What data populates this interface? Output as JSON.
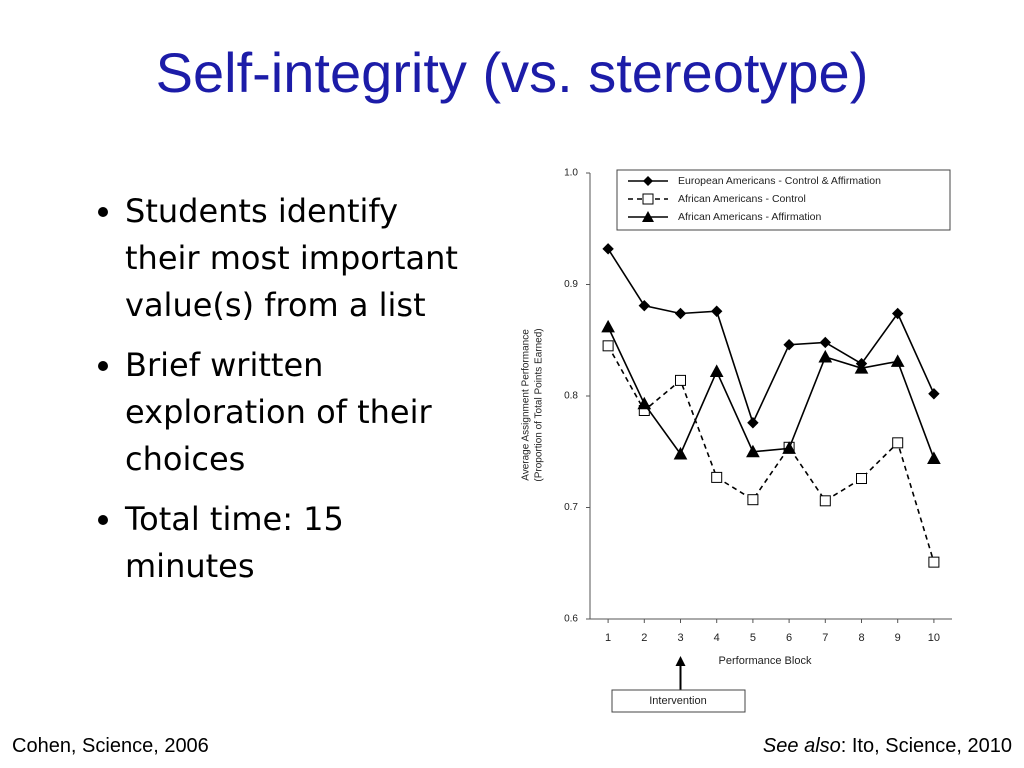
{
  "title": "Self-integrity (vs. stereotype)",
  "bullets": [
    "Students identify their most important value(s) from a list",
    "Brief written exploration of their choices",
    "Total time: 15 minutes"
  ],
  "footer_left": "Cohen, Science, 2006",
  "footer_right": {
    "em": "See also",
    "rest": ": Ito, Science, 2010"
  },
  "chart_data": {
    "type": "line",
    "x": [
      1,
      2,
      3,
      4,
      5,
      6,
      7,
      8,
      9,
      10
    ],
    "xlim": [
      0.5,
      10.5
    ],
    "xticks": [
      1,
      2,
      3,
      4,
      5,
      6,
      7,
      8,
      9,
      10
    ],
    "ylim": [
      0.6,
      1.0
    ],
    "yticks": [
      0.6,
      0.7,
      0.8,
      0.9,
      {
        "value": 1.0,
        "label": "1.0"
      }
    ],
    "x_label": "Performance Block",
    "y_label": [
      "Average Assignment Performance",
      "(Proportion of Total Points Earned)"
    ],
    "annotation": {
      "text": "Intervention",
      "x": 3
    },
    "series": [
      {
        "name": "European Americans - Control & Affirmation",
        "color": "#000000",
        "marker": "diamond",
        "dashed": false,
        "values": [
          0.932,
          0.881,
          0.874,
          0.876,
          0.776,
          0.846,
          0.848,
          0.829,
          0.874,
          0.802
        ]
      },
      {
        "name": "African Americans - Control",
        "color": "#000000",
        "marker": "square",
        "dashed": true,
        "values": [
          0.845,
          0.787,
          0.814,
          0.727,
          0.707,
          0.754,
          0.706,
          0.726,
          0.758,
          0.651
        ]
      },
      {
        "name": "African Americans - Affirmation",
        "color": "#000000",
        "marker": "triangle",
        "dashed": false,
        "values": [
          0.862,
          0.793,
          0.748,
          0.822,
          0.75,
          0.753,
          0.835,
          0.825,
          0.831,
          0.744
        ]
      }
    ]
  }
}
